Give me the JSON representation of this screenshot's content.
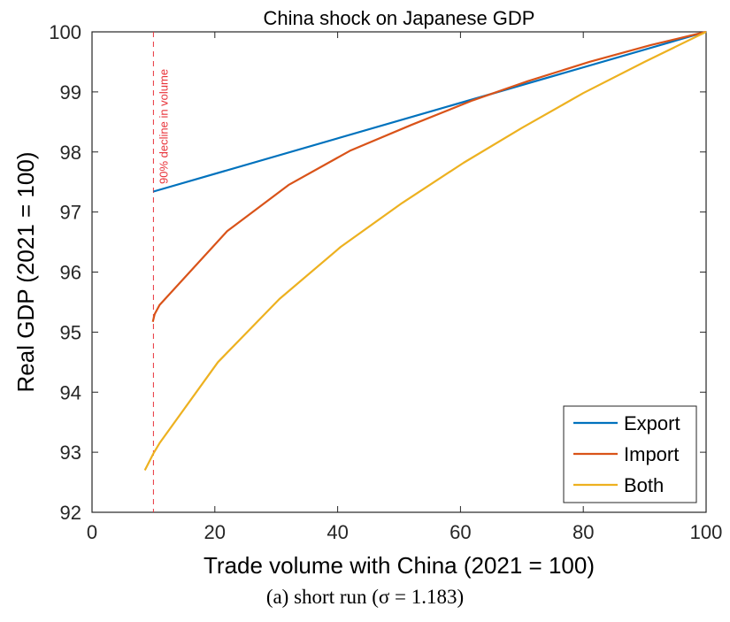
{
  "caption": "(a) short run (σ = 1.183)",
  "chart_data": {
    "type": "line",
    "title": "China shock on Japanese GDP",
    "xlabel": "Trade volume with China (2021 = 100)",
    "ylabel": "Real GDP (2021 = 100)",
    "xlim": [
      0,
      100
    ],
    "ylim": [
      92,
      100
    ],
    "xticks": [
      0,
      20,
      40,
      60,
      80,
      100
    ],
    "yticks": [
      92,
      93,
      94,
      95,
      96,
      97,
      98,
      99,
      100
    ],
    "grid": false,
    "legend_position": "bottom-right",
    "annotation": {
      "text": "90% decline in volume",
      "x": 10,
      "color": "#e8333a"
    },
    "series": [
      {
        "name": "Export",
        "color": "#0072bd",
        "x": [
          10,
          100
        ],
        "y": [
          97.34,
          100
        ]
      },
      {
        "name": "Import",
        "color": "#d95319",
        "x": [
          9.9,
          10.2,
          11,
          22,
          32,
          42,
          52,
          62,
          71,
          81,
          91,
          100
        ],
        "y": [
          95.17,
          95.3,
          95.45,
          96.68,
          97.45,
          98.02,
          98.45,
          98.86,
          99.18,
          99.5,
          99.78,
          100
        ]
      },
      {
        "name": "Both",
        "color": "#edb120",
        "x": [
          8.6,
          10,
          11,
          20.5,
          30.5,
          40.5,
          50.5,
          60.5,
          70,
          80,
          90,
          100
        ],
        "y": [
          92.7,
          92.98,
          93.15,
          94.5,
          95.55,
          96.42,
          97.15,
          97.82,
          98.4,
          98.98,
          99.5,
          100
        ]
      }
    ]
  }
}
